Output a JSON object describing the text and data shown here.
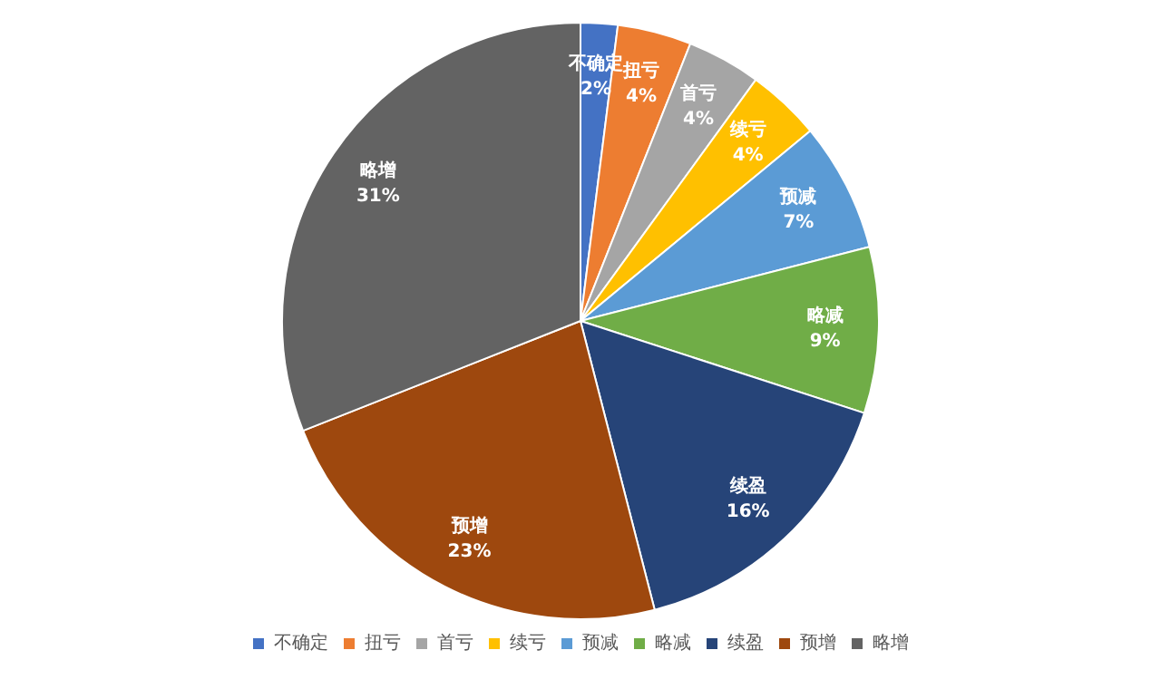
{
  "chart_data": {
    "type": "pie",
    "categories": [
      "不确定",
      "扭亏",
      "首亏",
      "续亏",
      "预减",
      "略减",
      "续盈",
      "预增",
      "略增"
    ],
    "values": [
      2,
      4,
      4,
      4,
      7,
      9,
      16,
      23,
      31
    ],
    "value_labels": [
      "2%",
      "4%",
      "4%",
      "4%",
      "7%",
      "9%",
      "16%",
      "23%",
      "31%"
    ],
    "colors": [
      "#4472c4",
      "#ed7d31",
      "#a5a5a5",
      "#ffc000",
      "#5b9bd5",
      "#70ad47",
      "#264478",
      "#9e480e",
      "#636363"
    ],
    "legend": "bottom"
  }
}
